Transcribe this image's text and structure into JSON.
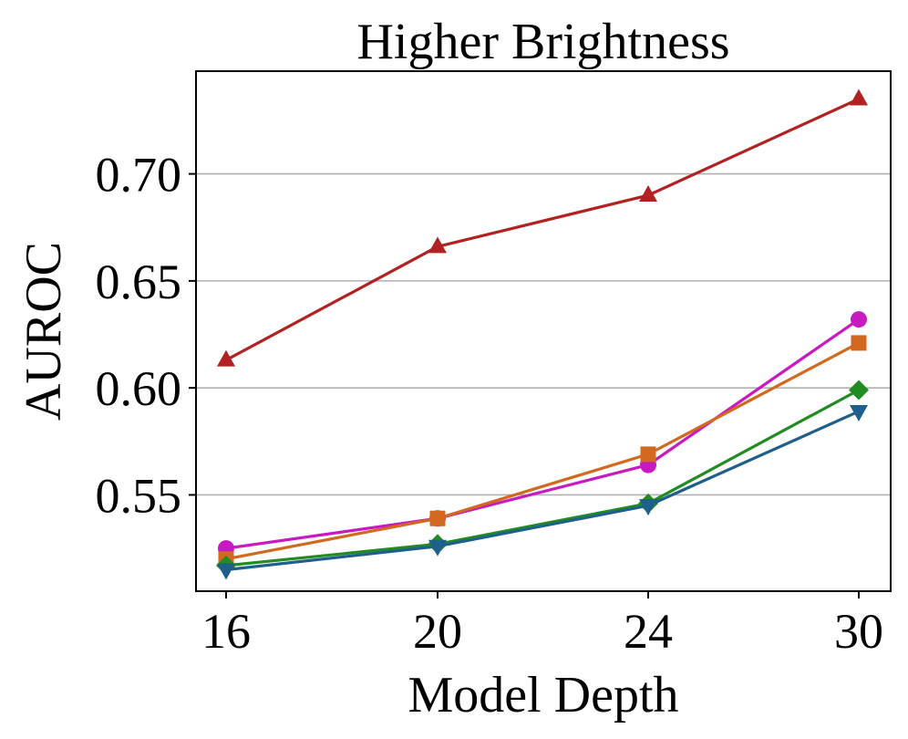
{
  "chart_data": {
    "type": "line",
    "title": "Higher Brightness",
    "xlabel": "Model Depth",
    "ylabel": "AUROC",
    "categories": [
      "16",
      "20",
      "24",
      "30"
    ],
    "yticks": [
      0.55,
      0.6,
      0.65,
      0.7
    ],
    "ytick_labels": [
      "0.55",
      "0.60",
      "0.65",
      "0.70"
    ],
    "ylim": [
      0.505,
      0.748
    ],
    "grid": "horizontal",
    "series": [
      {
        "name": "series-triangle-up",
        "color": "#B22222",
        "marker": "triangle-up",
        "values": [
          0.613,
          0.666,
          0.69,
          0.735
        ]
      },
      {
        "name": "series-circle",
        "color": "#C71AC0",
        "marker": "circle",
        "values": [
          0.525,
          0.539,
          0.564,
          0.632
        ]
      },
      {
        "name": "series-square",
        "color": "#D2691E",
        "marker": "square",
        "values": [
          0.52,
          0.539,
          0.569,
          0.621
        ]
      },
      {
        "name": "series-diamond",
        "color": "#228B22",
        "marker": "diamond",
        "values": [
          0.517,
          0.527,
          0.546,
          0.599
        ]
      },
      {
        "name": "series-triangle-down",
        "color": "#1F5F8B",
        "marker": "triangle-down",
        "values": [
          0.515,
          0.526,
          0.545,
          0.589
        ]
      }
    ]
  }
}
